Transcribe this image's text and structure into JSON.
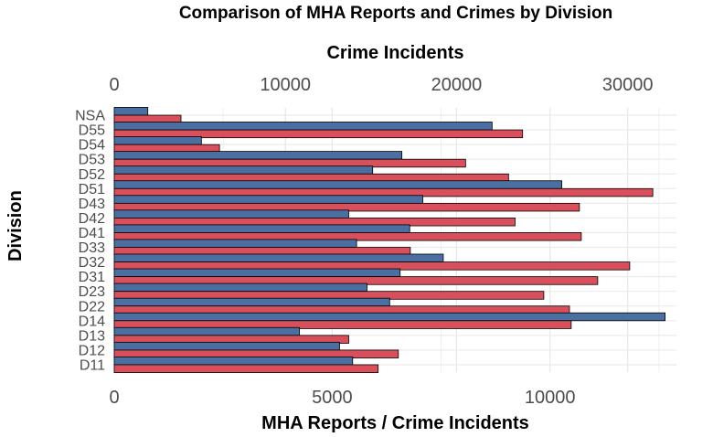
{
  "chart_data": {
    "type": "bar",
    "orientation": "horizontal",
    "title": "Comparison of MHA Reports and Crimes by Division",
    "xlabel_top": "Crime Incidents",
    "xlabel_bottom": "MHA Reports / Crime Incidents",
    "ylabel": "Division",
    "categories": [
      "NSA",
      "D55",
      "D54",
      "D53",
      "D52",
      "D51",
      "D43",
      "D42",
      "D41",
      "D33",
      "D32",
      "D31",
      "D23",
      "D22",
      "D14",
      "D13",
      "D12",
      "D11"
    ],
    "series": [
      {
        "axis": "bottom",
        "color": "#4a6fa0",
        "values": [
          770,
          8670,
          2000,
          6600,
          5930,
          10270,
          7080,
          5380,
          6780,
          5560,
          7550,
          6560,
          5800,
          6320,
          12640,
          4250,
          5170,
          5470
        ]
      },
      {
        "axis": "top",
        "color": "#d9505c",
        "values": [
          3900,
          23860,
          6150,
          20530,
          23040,
          31470,
          27180,
          23420,
          27290,
          17300,
          30120,
          28250,
          25100,
          26600,
          26700,
          13700,
          16600,
          15420
        ]
      }
    ],
    "bottom_axis": {
      "ticks": [
        0,
        5000,
        10000
      ],
      "range": [
        0,
        12900
      ]
    },
    "top_axis": {
      "ticks": [
        0,
        10000,
        20000,
        30000
      ],
      "range": [
        0,
        32850
      ]
    },
    "grid": true,
    "legend": "none"
  }
}
